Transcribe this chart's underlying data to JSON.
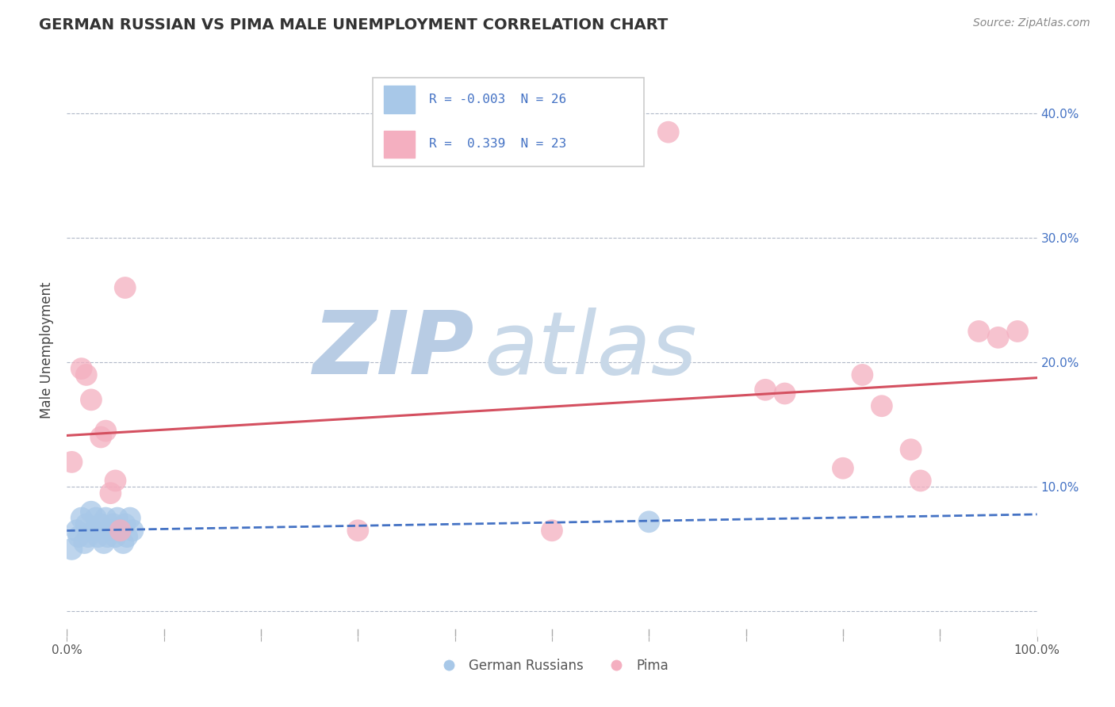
{
  "title": "GERMAN RUSSIAN VS PIMA MALE UNEMPLOYMENT CORRELATION CHART",
  "source": "Source: ZipAtlas.com",
  "ylabel": "Male Unemployment",
  "watermark_zip": "ZIP",
  "watermark_atlas": "atlas",
  "xlim": [
    0.0,
    1.0
  ],
  "ylim": [
    -0.02,
    0.44
  ],
  "x_ticks": [
    0.0,
    0.1,
    0.2,
    0.3,
    0.4,
    0.5,
    0.6,
    0.7,
    0.8,
    0.9,
    1.0
  ],
  "y_ticks": [
    0.0,
    0.1,
    0.2,
    0.3,
    0.4
  ],
  "y_tick_labels": [
    "",
    "10.0%",
    "20.0%",
    "30.0%",
    "40.0%"
  ],
  "german_russians_x": [
    0.005,
    0.01,
    0.012,
    0.015,
    0.018,
    0.02,
    0.022,
    0.025,
    0.028,
    0.03,
    0.032,
    0.035,
    0.038,
    0.04,
    0.042,
    0.045,
    0.048,
    0.05,
    0.052,
    0.055,
    0.058,
    0.06,
    0.062,
    0.065,
    0.068,
    0.6
  ],
  "german_russians_y": [
    0.05,
    0.065,
    0.06,
    0.075,
    0.055,
    0.07,
    0.06,
    0.08,
    0.065,
    0.075,
    0.06,
    0.07,
    0.055,
    0.075,
    0.06,
    0.065,
    0.07,
    0.06,
    0.075,
    0.065,
    0.055,
    0.07,
    0.06,
    0.075,
    0.065,
    0.072
  ],
  "pima_x": [
    0.005,
    0.015,
    0.02,
    0.025,
    0.035,
    0.04,
    0.045,
    0.05,
    0.055,
    0.06,
    0.3,
    0.5,
    0.62,
    0.72,
    0.74,
    0.8,
    0.82,
    0.84,
    0.87,
    0.88,
    0.94,
    0.96,
    0.98
  ],
  "pima_y": [
    0.12,
    0.195,
    0.19,
    0.17,
    0.14,
    0.145,
    0.095,
    0.105,
    0.065,
    0.26,
    0.065,
    0.065,
    0.385,
    0.178,
    0.175,
    0.115,
    0.19,
    0.165,
    0.13,
    0.105,
    0.225,
    0.22,
    0.225
  ],
  "gr_R": "-0.003",
  "gr_N": "26",
  "pima_R": "0.339",
  "pima_N": "23",
  "blue_scatter_color": "#a8c8e8",
  "pink_scatter_color": "#f4afc0",
  "blue_line_color": "#4472c4",
  "pink_line_color": "#d45060",
  "legend_text_color": "#4472c4",
  "title_color": "#333333",
  "source_color": "#888888",
  "grid_color": "#b0b8c8",
  "watermark_color_zip": "#b8cce4",
  "watermark_color_atlas": "#c8d8e8",
  "tick_label_color_x": "#555555",
  "tick_label_color_y": "#4472c4"
}
